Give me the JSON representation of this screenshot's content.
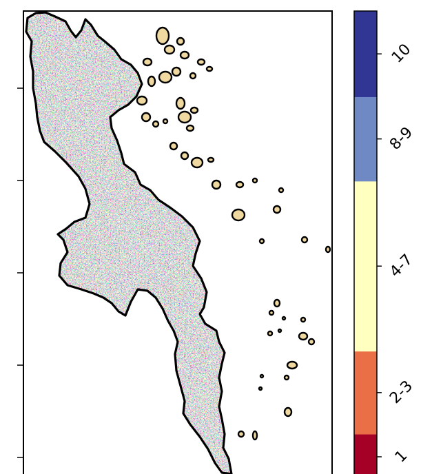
{
  "map": {
    "legend_title": "",
    "colors": {
      "high": "#313695",
      "upper_mid": "#6f89c4",
      "mid": "#ffffc0",
      "lower_mid": "#ea6f46",
      "low": "#a50026",
      "outline": "#000000",
      "frame": "#000000",
      "background": "#ffffff"
    },
    "classes": [
      {
        "label": "1",
        "color": "#a50026",
        "share": 0.097
      },
      {
        "label": "2-3",
        "color": "#ea6f46",
        "share": 0.177
      },
      {
        "label": "4-7",
        "color": "#ffffc0",
        "share": 0.363
      },
      {
        "label": "8-9",
        "color": "#6f89c4",
        "share": 0.18
      },
      {
        "label": "10",
        "color": "#313695",
        "share": 0.183
      }
    ]
  }
}
